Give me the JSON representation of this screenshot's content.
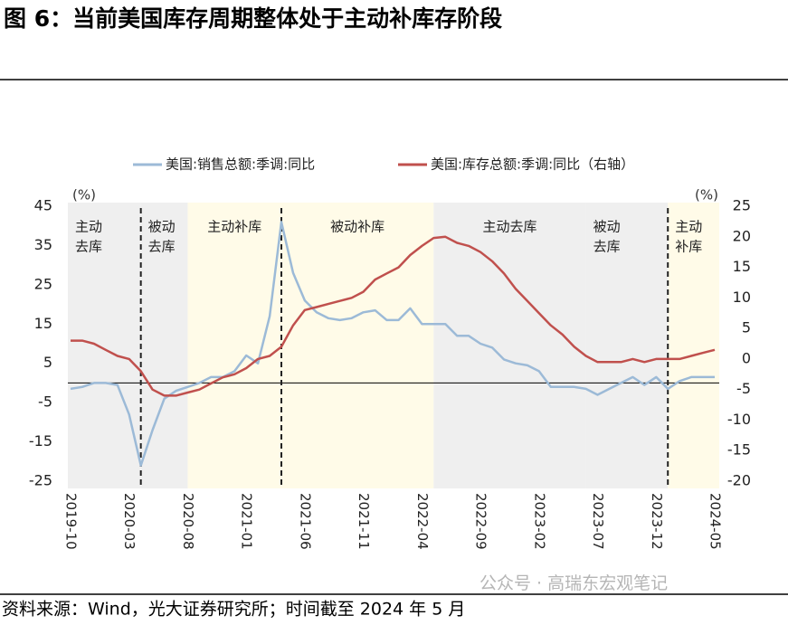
{
  "chart_data": {
    "type": "line",
    "title": "图 6：当前美国库存周期整体处于主动补库存阶段",
    "source": "资料来源：Wind，光大证券研究所；时间截至 2024 年 5 月",
    "watermark": "公众号 · 高瑞东宏观笔记",
    "ylabel": "(%)",
    "y2label": "(%)",
    "categories": [
      "2019-10",
      null,
      null,
      null,
      null,
      "2020-03",
      null,
      null,
      null,
      null,
      "2020-08",
      null,
      null,
      null,
      null,
      "2021-01",
      null,
      null,
      null,
      null,
      "2021-06",
      null,
      null,
      null,
      null,
      "2021-11",
      null,
      null,
      null,
      null,
      "2022-04",
      null,
      null,
      null,
      null,
      "2022-09",
      null,
      null,
      null,
      null,
      "2023-02",
      null,
      null,
      null,
      null,
      "2023-07",
      null,
      null,
      null,
      null,
      "2023-12",
      null,
      null,
      null,
      null,
      "2024-05"
    ],
    "series": [
      {
        "name": "美国:销售总额:季调:同比",
        "color": "#9cbad7",
        "axis": "y",
        "values": [
          -1.5,
          -1,
          0,
          0,
          -0.5,
          -8,
          -21,
          -12,
          -4,
          -2,
          -1,
          0,
          1.5,
          1.5,
          3,
          7,
          5,
          17,
          41,
          28,
          21,
          18,
          16.5,
          16,
          16.5,
          18,
          18.5,
          16,
          16,
          19,
          15,
          15,
          15,
          12,
          12,
          10,
          9,
          6,
          5,
          4.5,
          3,
          -1,
          -1,
          -1,
          -1.5,
          -3,
          -1.5,
          0,
          1.5,
          -0.5,
          1.5,
          -1.5,
          0.5,
          1.5,
          1.5,
          1.5
        ]
      },
      {
        "name": "美国:库存总额:季调:同比（右轴）",
        "color": "#c0504d",
        "axis": "y2",
        "values": [
          3,
          3,
          2.5,
          1.5,
          0.5,
          0,
          -2,
          -5,
          -6,
          -6,
          -5.5,
          -5,
          -4,
          -3,
          -2.5,
          -1.5,
          0,
          0.5,
          2,
          5.5,
          8,
          8.5,
          9,
          9.5,
          10,
          11,
          13,
          14,
          15,
          17,
          18.5,
          19.8,
          20,
          19,
          18.5,
          17.5,
          16,
          14,
          11.5,
          9.5,
          7.5,
          5.5,
          4,
          2,
          0.5,
          -0.5,
          -0.5,
          -0.5,
          0,
          -0.5,
          0,
          0,
          0,
          0.5,
          1,
          1.5
        ]
      }
    ],
    "ylim": [
      -25,
      45
    ],
    "yticks": [
      45,
      35,
      25,
      15,
      5,
      -5,
      -15,
      -25
    ],
    "y2lim": [
      -20,
      25
    ],
    "y2ticks": [
      25,
      20,
      15,
      10,
      5,
      0,
      -5,
      -10,
      -15,
      -20
    ],
    "legend": "top",
    "regions": [
      {
        "label": [
          "主动",
          "去库"
        ],
        "start": "2019-10",
        "end": "2020-04",
        "color": "#efefef"
      },
      {
        "label": [
          "被动",
          "去库"
        ],
        "start": "2020-04",
        "end": "2020-08",
        "color": "#efefef"
      },
      {
        "label": [
          "主动补库"
        ],
        "start": "2020-08",
        "end": "2021-04",
        "color": "#fffbe8"
      },
      {
        "label": [
          "被动补库"
        ],
        "start": "2021-04",
        "end": "2022-05",
        "color": "#fffbe8"
      },
      {
        "label": [
          "主动去库"
        ],
        "start": "2022-05",
        "end": "2023-06",
        "color": "#efefef"
      },
      {
        "label": [
          "被动",
          "去库"
        ],
        "start": "2023-06",
        "end": "2024-01",
        "color": "#efefef"
      },
      {
        "label": [
          "主动",
          "补库"
        ],
        "start": "2024-01",
        "end": "2024-05",
        "color": "#fffbe8"
      }
    ],
    "dividers": [
      "2020-04",
      "2021-04",
      "2024-01"
    ]
  }
}
